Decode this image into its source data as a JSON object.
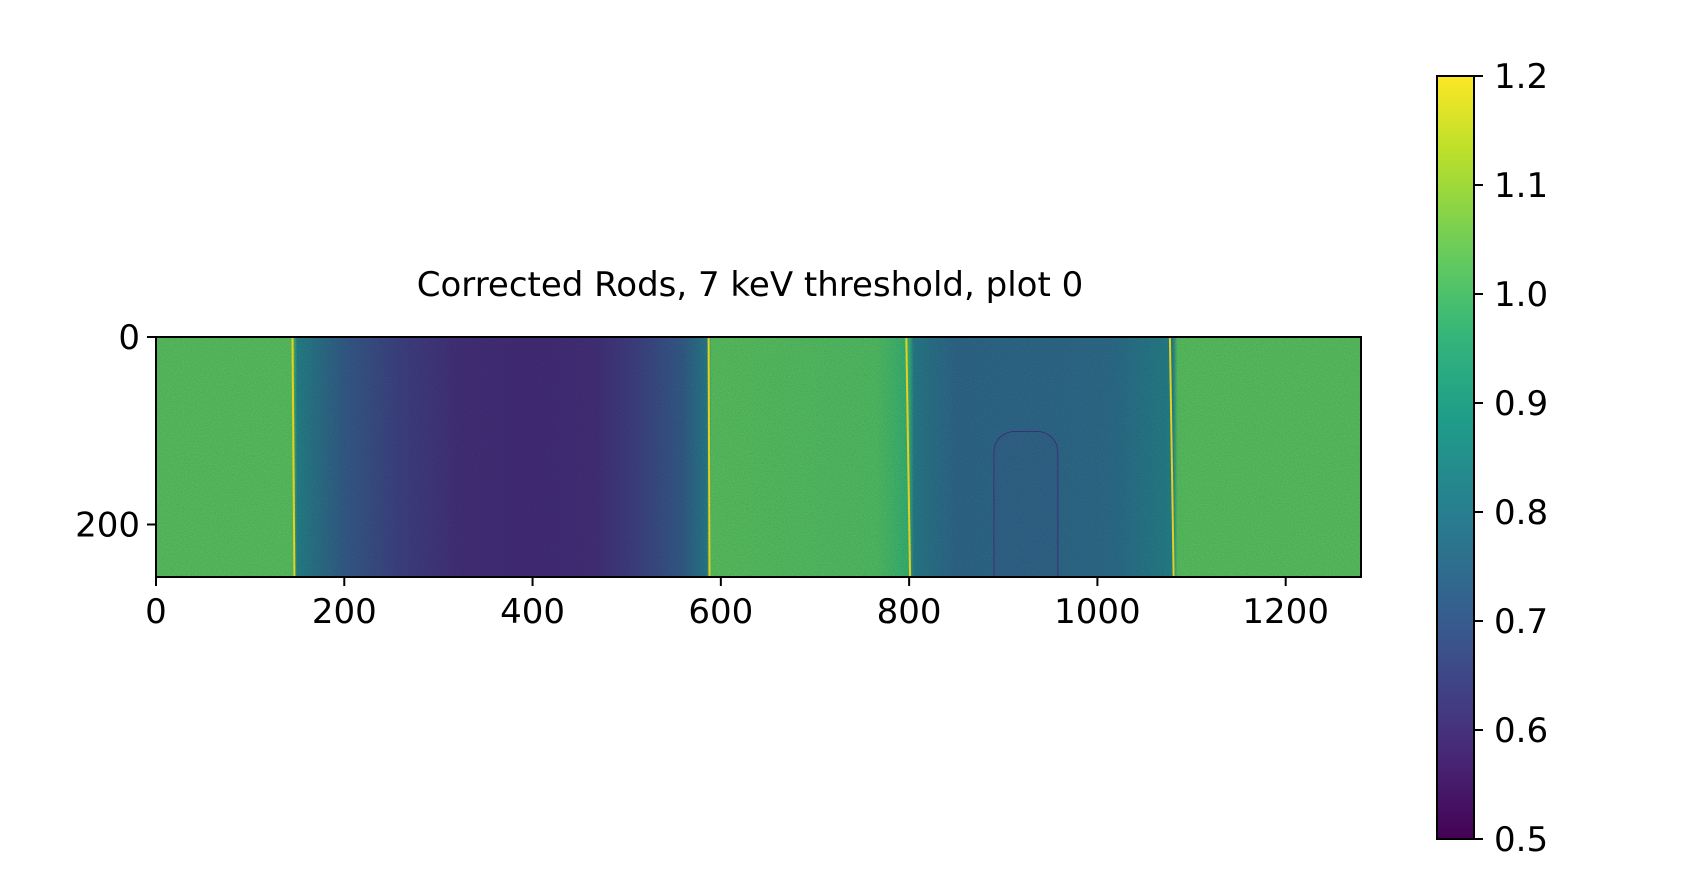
{
  "chart_data": {
    "type": "heatmap",
    "title": "Corrected Rods, 7 keV threshold, plot 0",
    "xlabel": "",
    "ylabel": "",
    "xlim": [
      0,
      1280
    ],
    "ylim": [
      256,
      0
    ],
    "x_ticks": [
      0,
      200,
      400,
      600,
      800,
      1000,
      1200
    ],
    "x_tick_labels": [
      "0",
      "200",
      "400",
      "600",
      "800",
      "1000",
      "1200"
    ],
    "y_ticks": [
      0,
      200
    ],
    "y_tick_labels": [
      "0",
      "200"
    ],
    "grid": false,
    "colormap": "viridis",
    "colorbar": {
      "range": [
        0.5,
        1.2
      ],
      "ticks": [
        0.5,
        0.6,
        0.7,
        0.8,
        0.9,
        1.0,
        1.1,
        1.2
      ],
      "tick_labels": [
        "0.5",
        "0.6",
        "0.7",
        "0.8",
        "0.9",
        "1.0",
        "1.1",
        "1.2"
      ],
      "placement": "right"
    },
    "column_profile": [
      {
        "x": 0,
        "value": 1.02
      },
      {
        "x": 145,
        "value": 1.02
      },
      {
        "x": 150,
        "value": 0.82
      },
      {
        "x": 200,
        "value": 0.71
      },
      {
        "x": 260,
        "value": 0.64
      },
      {
        "x": 320,
        "value": 0.6
      },
      {
        "x": 400,
        "value": 0.59
      },
      {
        "x": 470,
        "value": 0.6
      },
      {
        "x": 510,
        "value": 0.64
      },
      {
        "x": 560,
        "value": 0.71
      },
      {
        "x": 585,
        "value": 0.8
      },
      {
        "x": 590,
        "value": 1.02
      },
      {
        "x": 765,
        "value": 1.01
      },
      {
        "x": 800,
        "value": 0.97
      },
      {
        "x": 805,
        "value": 0.8
      },
      {
        "x": 850,
        "value": 0.74
      },
      {
        "x": 1000,
        "value": 0.75
      },
      {
        "x": 1020,
        "value": 0.76
      },
      {
        "x": 1080,
        "value": 0.82
      },
      {
        "x": 1085,
        "value": 1.02
      },
      {
        "x": 1280,
        "value": 1.02
      }
    ],
    "bright_edges": [
      {
        "x_top": 145,
        "x_bottom": 147,
        "value": 1.2
      },
      {
        "x_top": 587,
        "x_bottom": 588,
        "value": 1.2
      },
      {
        "x_top": 797,
        "x_bottom": 801,
        "value": 1.2
      },
      {
        "x_top": 1077,
        "x_bottom": 1081,
        "value": 1.2
      }
    ],
    "features": [
      {
        "kind": "inset",
        "x": [
          890,
          958
        ],
        "y": [
          105,
          256
        ],
        "value": 0.73
      }
    ],
    "colors": {
      "low": "#440154",
      "high": "#fde725"
    }
  }
}
